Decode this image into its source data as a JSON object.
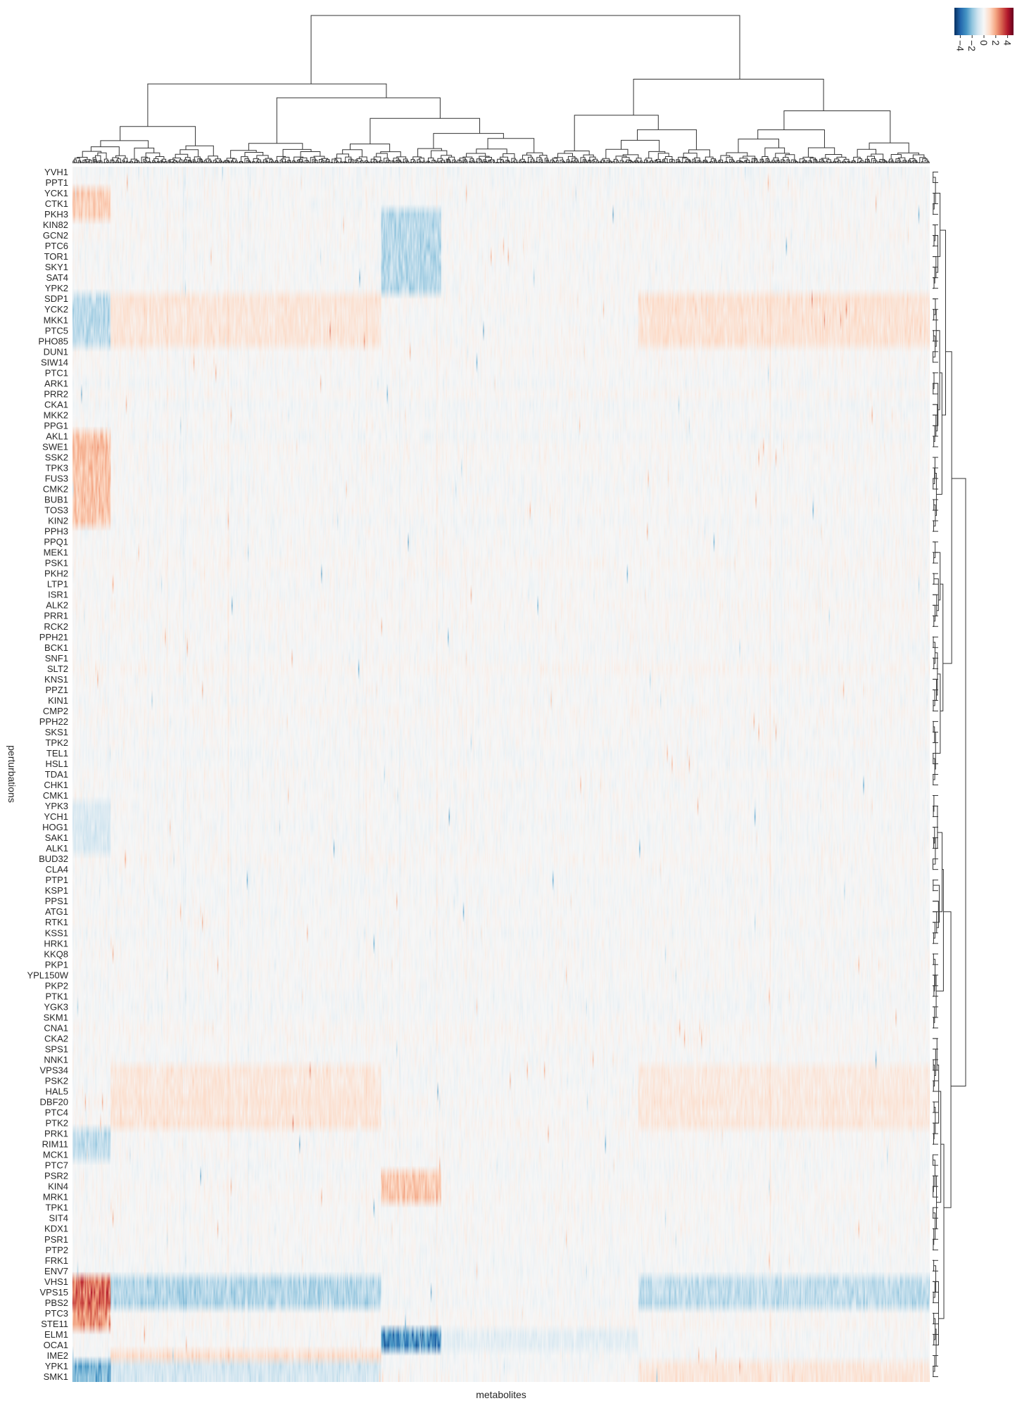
{
  "chart_data": {
    "type": "heatmap",
    "title": "",
    "xlabel": "metabolites",
    "ylabel": "perturbations",
    "colormap": "RdBu_r (diverging blue-white-red)",
    "colorbar": {
      "position": "top-right",
      "vmin": -5,
      "vmax": 5,
      "ticks": [
        "4",
        "2",
        "0",
        "−2",
        "−4"
      ],
      "tick_values": [
        4,
        2,
        0,
        -2,
        -4
      ]
    },
    "dendrograms": {
      "columns": "top",
      "rows": "right"
    },
    "x_tick_labels": "none (approx. 900 clustered metabolite columns)",
    "rows": [
      "YVH1",
      "PPT1",
      "YCK1",
      "CTK1",
      "PKH3",
      "KIN82",
      "GCN2",
      "PTC6",
      "TOR1",
      "SKY1",
      "SAT4",
      "YPK2",
      "SDP1",
      "YCK2",
      "MKK1",
      "PTC5",
      "PHO85",
      "DUN1",
      "SIW14",
      "PTC1",
      "ARK1",
      "PRR2",
      "CKA1",
      "MKK2",
      "PPG1",
      "AKL1",
      "SWE1",
      "SSK2",
      "TPK3",
      "FUS3",
      "CMK2",
      "BUB1",
      "TOS3",
      "KIN2",
      "PPH3",
      "PPQ1",
      "MEK1",
      "PSK1",
      "PKH2",
      "LTP1",
      "ISR1",
      "ALK2",
      "PRR1",
      "RCK2",
      "PPH21",
      "BCK1",
      "SNF1",
      "SLT2",
      "KNS1",
      "PPZ1",
      "KIN1",
      "CMP2",
      "PPH22",
      "SKS1",
      "TPK2",
      "TEL1",
      "HSL1",
      "TDA1",
      "CHK1",
      "CMK1",
      "YPK3",
      "YCH1",
      "HOG1",
      "SAK1",
      "ALK1",
      "BUD32",
      "CLA4",
      "PTP1",
      "KSP1",
      "PPS1",
      "ATG1",
      "RTK1",
      "KSS1",
      "HRK1",
      "KKQ8",
      "PKP1",
      "YPL150W",
      "PKP2",
      "PTK1",
      "YGK3",
      "SKM1",
      "CNA1",
      "CKA2",
      "SPS1",
      "NNK1",
      "VPS34",
      "PSK2",
      "HAL5",
      "DBF20",
      "PTC4",
      "PTK2",
      "PRK1",
      "RIM11",
      "MCK1",
      "PTC7",
      "PSR2",
      "KIN4",
      "MRK1",
      "TPK1",
      "SIT4",
      "KDX1",
      "PSR1",
      "PTP2",
      "FRK1",
      "ENV7",
      "VHS1",
      "VPS15",
      "PBS2",
      "PTC3",
      "STE11",
      "ELM1",
      "OCA1",
      "IME2",
      "YPK1",
      "SMK1"
    ],
    "n_columns": 900,
    "column_blocks": [
      {
        "label": "block-1",
        "fraction": [
          0.0,
          0.045
        ]
      },
      {
        "label": "block-2",
        "fraction": [
          0.045,
          0.36
        ]
      },
      {
        "label": "block-3",
        "fraction": [
          0.36,
          0.43
        ]
      },
      {
        "label": "block-4",
        "fraction": [
          0.43,
          0.66
        ]
      },
      {
        "label": "block-5",
        "fraction": [
          0.66,
          1.0
        ]
      }
    ],
    "row_block_patterns": [
      {
        "rows": [
          "YCK1",
          "CTK1",
          "PKH3"
        ],
        "block-1": 1.2
      },
      {
        "rows": [
          "PKH3",
          "KIN82",
          "GCN2",
          "PTC6",
          "TOR1",
          "SKY1",
          "SAT4",
          "YPK2"
        ],
        "block-3": -1.4
      },
      {
        "rows": [
          "SDP1",
          "YCK2",
          "MKK1",
          "PTC5",
          "PHO85"
        ],
        "block-1": -1.3,
        "block-2": 0.6,
        "block-5": 0.7
      },
      {
        "rows": [
          "AKL1",
          "SWE1",
          "SSK2",
          "TPK3",
          "FUS3",
          "CMK2",
          "BUB1",
          "TOS3",
          "KIN2"
        ],
        "block-1": 1.4
      },
      {
        "rows": [
          "YPK3",
          "YCH1",
          "HOG1",
          "SAK1",
          "ALK1"
        ],
        "block-1": -0.7
      },
      {
        "rows": [
          "VPS34",
          "PSK2",
          "HAL5",
          "DBF20",
          "PTC4",
          "PTK2"
        ],
        "block-2": 0.6,
        "block-5": 0.5
      },
      {
        "rows": [
          "PRK1",
          "RIM11",
          "MCK1"
        ],
        "block-1": -1.2
      },
      {
        "rows": [
          "PSR2",
          "KIN4",
          "MRK1"
        ],
        "block-3": 1.3
      },
      {
        "rows": [
          "VHS1",
          "VPS15",
          "PBS2"
        ],
        "block-1": 2.8,
        "block-2": -1.4,
        "block-5": -1.2
      },
      {
        "rows": [
          "PTC3",
          "STE11"
        ],
        "block-1": 2.2
      },
      {
        "rows": [
          "ELM1",
          "OCA1"
        ],
        "block-3": -3.0,
        "block-4": -0.5
      },
      {
        "rows": [
          "IME2"
        ],
        "block-2": 0.9
      },
      {
        "rows": [
          "YPK1",
          "SMK1"
        ],
        "block-1": -2.2,
        "block-2": -0.8,
        "block-5": 0.6
      }
    ]
  }
}
